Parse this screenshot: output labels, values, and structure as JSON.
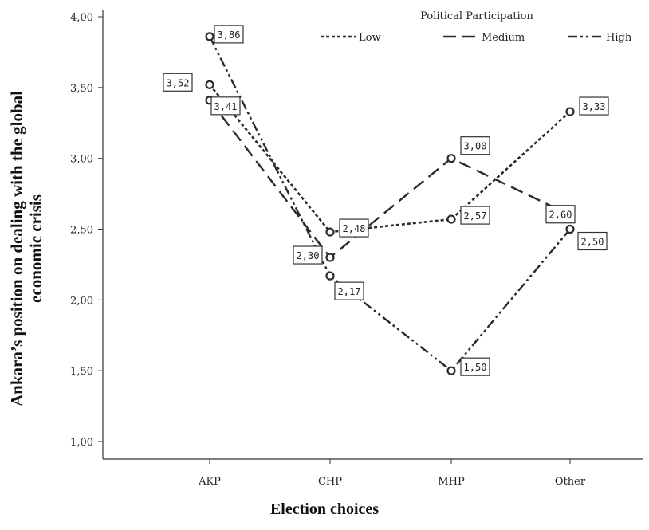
{
  "chart_data": {
    "type": "line",
    "title": "",
    "xlabel": "Election choices",
    "ylabel": [
      "Ankara’s position on dealing with the global",
      "economic crisis"
    ],
    "categories": [
      "AKP",
      "CHP",
      "MHP",
      "Other"
    ],
    "ylim": [
      1.0,
      4.0
    ],
    "yticks": [
      "1,00",
      "1,50",
      "2,00",
      "2,50",
      "3,00",
      "3,50",
      "4,00"
    ],
    "ytick_values": [
      1.0,
      1.5,
      2.0,
      2.5,
      3.0,
      3.5,
      4.0
    ],
    "legend": {
      "title": "Political Participation",
      "placement": "top-right"
    },
    "series": [
      {
        "name": "Low",
        "style": "dotted",
        "values": [
          3.52,
          2.48,
          2.57,
          3.33
        ],
        "labels": [
          "3,52",
          "2,48",
          "2,57",
          "3,33"
        ]
      },
      {
        "name": "Medium",
        "style": "dashed",
        "values": [
          3.41,
          2.3,
          3.0,
          2.6
        ],
        "labels": [
          "3,41",
          "2,30",
          "3,00",
          "2,60"
        ]
      },
      {
        "name": "High",
        "style": "dash-dot-dot",
        "values": [
          3.86,
          2.17,
          1.5,
          2.5
        ],
        "labels": [
          "3,86",
          "2,17",
          "1,50",
          "2,50"
        ]
      }
    ],
    "grid": false,
    "line_color": "#2a2a2a"
  }
}
